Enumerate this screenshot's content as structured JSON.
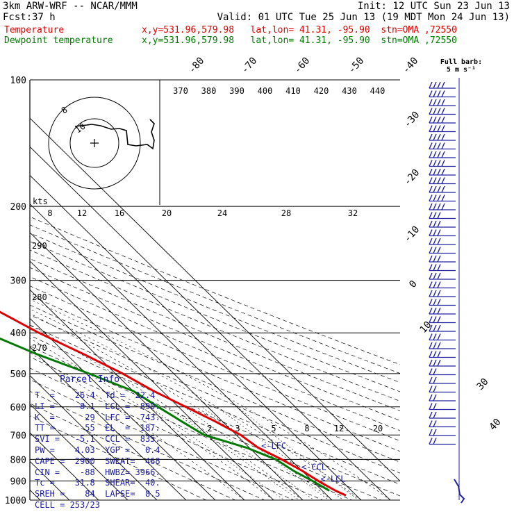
{
  "header": {
    "model": "3km ARW-WRF -- NCAR/MMM",
    "init": "Init: 12 UTC Sun 23 Jun 13",
    "fcst_label": "Fcst:",
    "fcst_value": "37 h",
    "valid": "Valid: 01 UTC Tue 25 Jun 13 (19 MDT Mon 24 Jun 13)",
    "temp_label": "Temperature",
    "temp_info": "x,y=531.96,579.98   lat,lon= 41.31, -95.90  stn=OMA ,72550",
    "dew_label": "Dewpoint temperature",
    "dew_info": "x,y=531.96,579.98   lat,lon= 41.31, -95.90  stn=OMA ,72550"
  },
  "colors": {
    "temperature": "#e00000",
    "dewpoint": "#007a00",
    "parcel_text": "#1a1aa0",
    "barbs": "#2020a0"
  },
  "chart_data": {
    "type": "line",
    "subtype": "skew-T log-p sounding",
    "pressure_ticks": [
      100,
      200,
      300,
      400,
      500,
      600,
      700,
      800,
      900,
      1000
    ],
    "temperature_top_labels": [
      "-80",
      "-70",
      "-60",
      "-50",
      "-40"
    ],
    "temperature_right_labels": [
      "-30",
      "-20",
      "-10",
      "0",
      "10",
      "30",
      "40"
    ],
    "theta_e_labels": [
      "370",
      "380",
      "390",
      "400",
      "410",
      "420",
      "430",
      "440"
    ],
    "theta_left_labels": [
      "290",
      "280",
      "270"
    ],
    "mixing_ratio_labels": [
      "2",
      "3",
      "5",
      "8",
      "12",
      "20"
    ],
    "hodograph": {
      "units_label": "kts",
      "ring_labels": [
        "8",
        "12",
        "16",
        "20",
        "24",
        "28",
        "32"
      ],
      "inner_labels": [
        "8",
        "10"
      ]
    },
    "barb_title": "Full barb:",
    "barb_unit": "5 m s⁻¹",
    "levels": [
      {
        "label": "<-EL",
        "p": 187
      },
      {
        "label": "<-LFC",
        "p": 743
      },
      {
        "label": "<-CCL",
        "p": 835
      },
      {
        "label": "<-LCL",
        "p": 890
      }
    ],
    "series": [
      {
        "name": "Temperature",
        "points": [
          {
            "p": 100,
            "t": -64
          },
          {
            "p": 110,
            "t": -64
          },
          {
            "p": 125,
            "t": -62
          },
          {
            "p": 150,
            "t": -60
          },
          {
            "p": 180,
            "t": -59
          },
          {
            "p": 200,
            "t": -58
          },
          {
            "p": 215,
            "t": -55
          },
          {
            "p": 250,
            "t": -47
          },
          {
            "p": 300,
            "t": -37
          },
          {
            "p": 350,
            "t": -29
          },
          {
            "p": 400,
            "t": -22
          },
          {
            "p": 450,
            "t": -14
          },
          {
            "p": 500,
            "t": -7.5
          },
          {
            "p": 550,
            "t": -3
          },
          {
            "p": 600,
            "t": 2.5
          },
          {
            "p": 650,
            "t": 7.5
          },
          {
            "p": 700,
            "t": 11.5
          },
          {
            "p": 750,
            "t": 13
          },
          {
            "p": 800,
            "t": 17
          },
          {
            "p": 850,
            "t": 20
          },
          {
            "p": 900,
            "t": 22
          },
          {
            "p": 950,
            "t": 24.5
          },
          {
            "p": 975,
            "t": 26.4
          }
        ]
      },
      {
        "name": "Dewpoint temperature",
        "points": [
          {
            "p": 100,
            "t": -84
          },
          {
            "p": 115,
            "t": -92
          },
          {
            "p": 135,
            "t": -90
          },
          {
            "p": 150,
            "t": -84
          },
          {
            "p": 175,
            "t": -82
          },
          {
            "p": 200,
            "t": -77
          },
          {
            "p": 250,
            "t": -63
          },
          {
            "p": 300,
            "t": -51
          },
          {
            "p": 350,
            "t": -47
          },
          {
            "p": 400,
            "t": -40
          },
          {
            "p": 450,
            "t": -30
          },
          {
            "p": 500,
            "t": -19
          },
          {
            "p": 550,
            "t": -10
          },
          {
            "p": 600,
            "t": -7
          },
          {
            "p": 650,
            "t": -4
          },
          {
            "p": 700,
            "t": -1
          },
          {
            "p": 750,
            "t": 9
          },
          {
            "p": 800,
            "t": 15
          },
          {
            "p": 850,
            "t": 17
          },
          {
            "p": 900,
            "t": 20
          },
          {
            "p": 950,
            "t": 22.4
          }
        ]
      }
    ]
  },
  "parcel_info": {
    "title": "Parcel Info",
    "rows": [
      "T  =    26.4  Td =  22.4",
      "LI =    -8.1  LCL =  890.",
      "K  =      29  LFC =  743.",
      "TT =      55  EL  =  187.",
      "SVI =   -5.1  CCL =  835.",
      "PW =    4.03  YGP =   0.4",
      "CAPE =  2900  SWEAT=  468",
      "CIN =    -88  HWBZ= 3966.",
      "Tc =    31.8  SHEAR=  40.",
      "SREH =    84  LAPSE=  8.5",
      "CELL = 253/23"
    ]
  }
}
